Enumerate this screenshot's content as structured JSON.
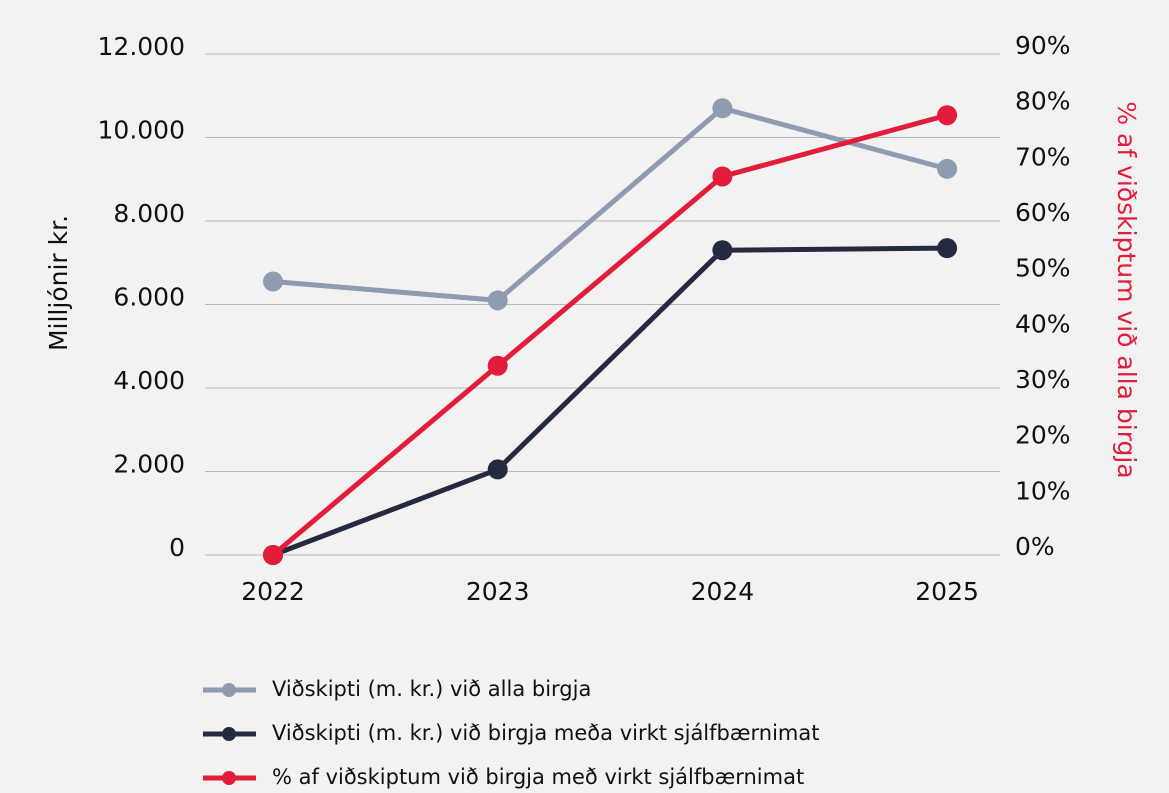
{
  "chart_data": {
    "type": "line",
    "categories": [
      "2022",
      "2023",
      "2024",
      "2025"
    ],
    "ylabel": "Milljónir kr.",
    "y2label": "% af viðskiptum við alla birgja",
    "ylim": [
      0,
      12000
    ],
    "yticks": [
      0,
      {
        "value": 2000,
        "label": "2.000"
      },
      {
        "value": 4000,
        "label": "4.000"
      },
      {
        "value": 6000,
        "label": "6.000"
      },
      {
        "value": 8000,
        "label": "8.000"
      },
      {
        "value": 10000,
        "label": "10.000"
      },
      {
        "value": 12000,
        "label": "12.000"
      }
    ],
    "y2lim": [
      0,
      90
    ],
    "y2ticks": [
      {
        "value": 0,
        "label": "0%"
      },
      {
        "value": 10,
        "label": "10%"
      },
      {
        "value": 20,
        "label": "20%"
      },
      {
        "value": 30,
        "label": "30%"
      },
      {
        "value": 40,
        "label": "40%"
      },
      {
        "value": 50,
        "label": "50%"
      },
      {
        "value": 60,
        "label": "60%"
      },
      {
        "value": 70,
        "label": "70%"
      },
      {
        "value": 80,
        "label": "80%"
      },
      {
        "value": 90,
        "label": "90%"
      }
    ],
    "y2label_color": "#e11d3a",
    "grid": true,
    "series": [
      {
        "name": "Viðskipti (m. kr.) við alla birgja",
        "color": "#8f9bb0",
        "values": [
          6550,
          6100,
          10700,
          9250
        ]
      },
      {
        "name": "Viðskipti (m. kr.) við birgja meða virkt sjálfbærnimat",
        "color": "#262a40",
        "values": [
          0,
          2050,
          7300,
          7350
        ]
      },
      {
        "name": "% af viðskiptum við birgja með virkt sjálfbærnimat",
        "color": "#e11d3a",
        "values": [
          0,
          34,
          68,
          79
        ],
        "axis": "y2"
      }
    ]
  }
}
